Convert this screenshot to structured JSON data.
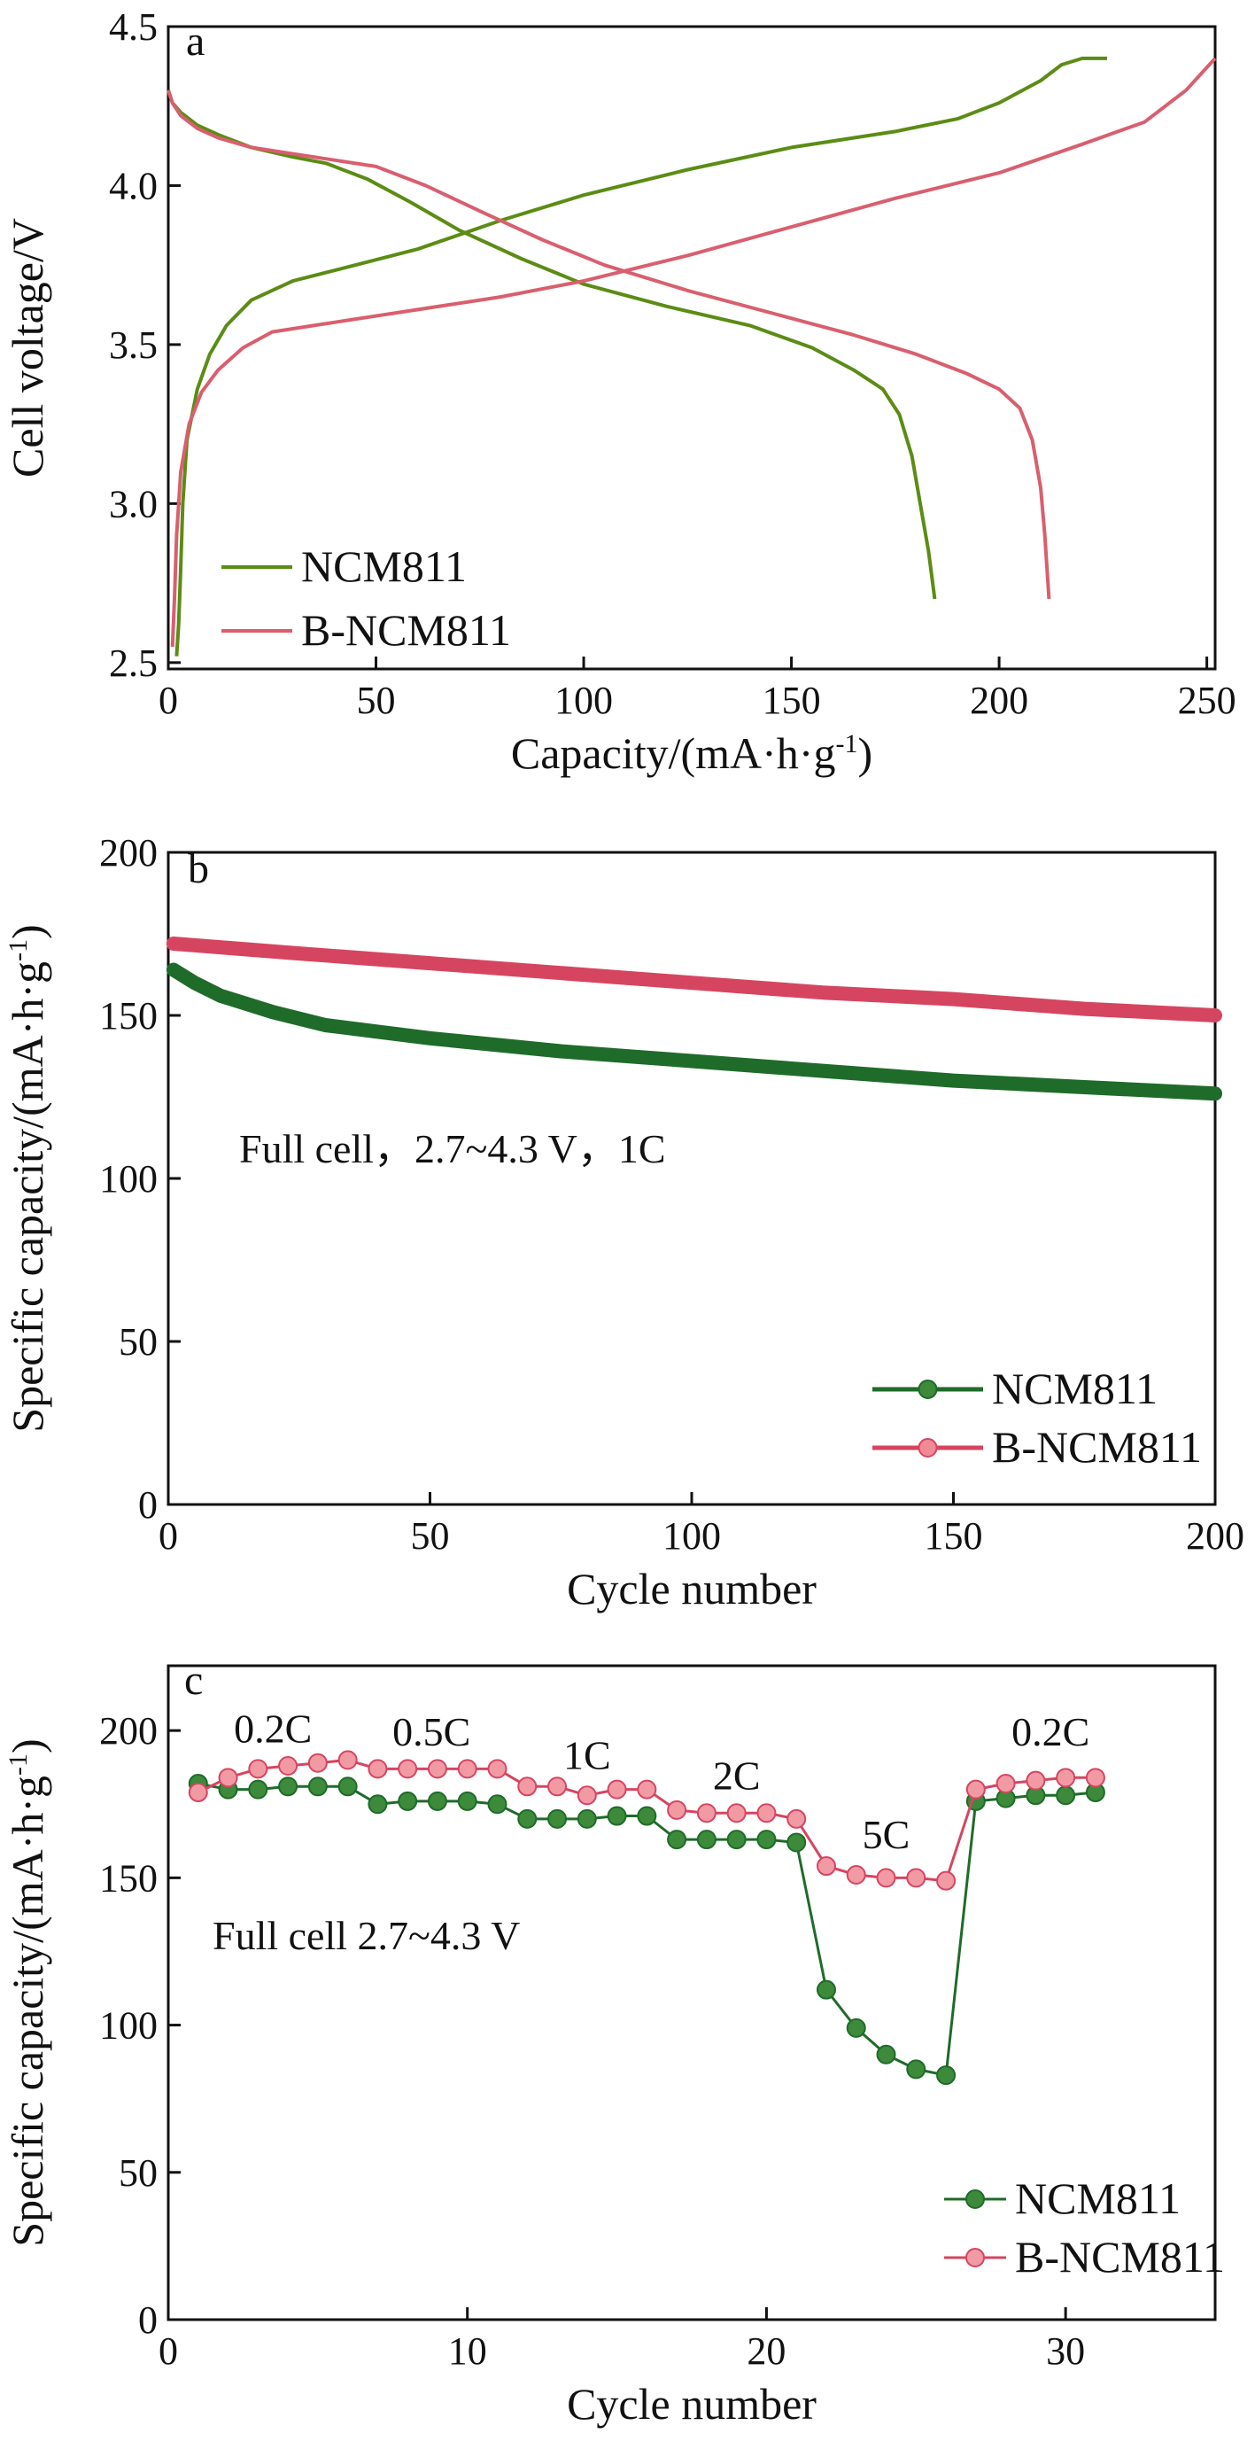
{
  "chart_data": [
    {
      "panel": "a",
      "type": "line",
      "xlabel": "Capacity/(mA·h·g",
      "xlabel_sup": "-1",
      "xlabel_close": ")",
      "ylabel": "Cell voltage/V",
      "xlim": [
        0,
        252
      ],
      "ylim": [
        2.48,
        4.5
      ],
      "xticks": [
        "0",
        "50",
        "100",
        "150",
        "200",
        "250"
      ],
      "yticks": [
        "2.5",
        "3.0",
        "3.5",
        "4.0",
        "4.5"
      ],
      "legend_position": "bottom-left",
      "series": [
        {
          "name": "NCM811",
          "color": "#5b8c14",
          "segments": [
            [
              [
                0,
                4.3
              ],
              [
                1,
                4.26
              ],
              [
                3,
                4.23
              ],
              [
                7,
                4.19
              ],
              [
                12,
                4.16
              ],
              [
                20,
                4.12
              ],
              [
                30,
                4.09
              ],
              [
                38,
                4.07
              ],
              [
                48,
                4.02
              ],
              [
                58,
                3.95
              ],
              [
                70,
                3.86
              ],
              [
                85,
                3.77
              ],
              [
                100,
                3.69
              ],
              [
                120,
                3.62
              ],
              [
                140,
                3.56
              ],
              [
                155,
                3.49
              ],
              [
                165,
                3.42
              ],
              [
                172,
                3.36
              ],
              [
                176,
                3.28
              ],
              [
                179,
                3.15
              ],
              [
                181,
                3.0
              ],
              [
                183,
                2.85
              ],
              [
                184.5,
                2.7
              ]
            ],
            [
              [
                2,
                2.52
              ],
              [
                2.5,
                2.62
              ],
              [
                3,
                2.8
              ],
              [
                3.5,
                3.0
              ],
              [
                4.5,
                3.2
              ],
              [
                7,
                3.36
              ],
              [
                10,
                3.47
              ],
              [
                14,
                3.56
              ],
              [
                20,
                3.64
              ],
              [
                30,
                3.7
              ],
              [
                45,
                3.75
              ],
              [
                60,
                3.8
              ],
              [
                80,
                3.89
              ],
              [
                100,
                3.97
              ],
              [
                125,
                4.05
              ],
              [
                150,
                4.12
              ],
              [
                175,
                4.17
              ],
              [
                190,
                4.21
              ],
              [
                200,
                4.26
              ],
              [
                210,
                4.33
              ],
              [
                215,
                4.38
              ],
              [
                220,
                4.4
              ],
              [
                226,
                4.4
              ]
            ]
          ]
        },
        {
          "name": "B-NCM811",
          "color": "#d95f6e",
          "segments": [
            [
              [
                0,
                4.3
              ],
              [
                1,
                4.26
              ],
              [
                3,
                4.22
              ],
              [
                7,
                4.18
              ],
              [
                12,
                4.15
              ],
              [
                20,
                4.12
              ],
              [
                30,
                4.1
              ],
              [
                40,
                4.08
              ],
              [
                50,
                4.06
              ],
              [
                62,
                4.0
              ],
              [
                75,
                3.92
              ],
              [
                90,
                3.83
              ],
              [
                105,
                3.75
              ],
              [
                125,
                3.67
              ],
              [
                145,
                3.6
              ],
              [
                165,
                3.53
              ],
              [
                180,
                3.47
              ],
              [
                192,
                3.41
              ],
              [
                200,
                3.36
              ],
              [
                205,
                3.3
              ],
              [
                208,
                3.2
              ],
              [
                210,
                3.05
              ],
              [
                211,
                2.9
              ],
              [
                212,
                2.7
              ]
            ],
            [
              [
                1,
                2.55
              ],
              [
                1.5,
                2.7
              ],
              [
                2,
                2.9
              ],
              [
                3,
                3.1
              ],
              [
                5,
                3.25
              ],
              [
                8,
                3.35
              ],
              [
                12,
                3.42
              ],
              [
                18,
                3.49
              ],
              [
                25,
                3.54
              ],
              [
                35,
                3.56
              ],
              [
                55,
                3.6
              ],
              [
                80,
                3.65
              ],
              [
                100,
                3.7
              ],
              [
                125,
                3.78
              ],
              [
                150,
                3.87
              ],
              [
                175,
                3.96
              ],
              [
                200,
                4.04
              ],
              [
                220,
                4.13
              ],
              [
                235,
                4.2
              ],
              [
                245,
                4.3
              ],
              [
                252,
                4.4
              ]
            ]
          ]
        }
      ]
    },
    {
      "panel": "b",
      "type": "line",
      "xlabel": "Cycle number",
      "ylabel": "Specific capacity/(mA·h·g",
      "ylabel_sup": "-1",
      "ylabel_close": ")",
      "xlim": [
        0,
        200
      ],
      "ylim": [
        0,
        200
      ],
      "xticks": [
        "0",
        "50",
        "100",
        "150",
        "200"
      ],
      "yticks": [
        "0",
        "50",
        "100",
        "150",
        "200"
      ],
      "annotation": "Full cell，2.7~4.3 V，1C",
      "legend_position": "bottom-right",
      "series": [
        {
          "name": "NCM811",
          "color": "#1f6b2a",
          "marker_color": "#3c8a3a",
          "points": [
            [
              1,
              164
            ],
            [
              5,
              160
            ],
            [
              10,
              156
            ],
            [
              20,
              151
            ],
            [
              30,
              147
            ],
            [
              40,
              145
            ],
            [
              50,
              143
            ],
            [
              75,
              139
            ],
            [
              100,
              136
            ],
            [
              125,
              133
            ],
            [
              150,
              130
            ],
            [
              175,
              128
            ],
            [
              200,
              126
            ]
          ]
        },
        {
          "name": "B-NCM811",
          "color": "#d64560",
          "marker_color": "#f08a96",
          "points": [
            [
              1,
              172
            ],
            [
              25,
              169
            ],
            [
              50,
              166
            ],
            [
              75,
              163
            ],
            [
              100,
              160
            ],
            [
              125,
              157
            ],
            [
              150,
              155
            ],
            [
              175,
              152
            ],
            [
              200,
              150
            ]
          ]
        }
      ]
    },
    {
      "panel": "c",
      "type": "line",
      "xlabel": "Cycle number",
      "ylabel": "Specific capacity/(mA·h·g",
      "ylabel_sup": "-1",
      "ylabel_close": ")",
      "xlim": [
        0,
        35
      ],
      "ylim": [
        0,
        222
      ],
      "xticks": [
        "0",
        "10",
        "20",
        "30"
      ],
      "yticks": [
        "0",
        "50",
        "100",
        "150",
        "200"
      ],
      "annotation": "Full cell 2.7~4.3 V",
      "legend_position": "bottom-right",
      "rate_labels": [
        {
          "text": "0.2C",
          "x": 3.5,
          "y": 196
        },
        {
          "text": "0.5C",
          "x": 8.8,
          "y": 195
        },
        {
          "text": "1C",
          "x": 14,
          "y": 187
        },
        {
          "text": "2C",
          "x": 19,
          "y": 180
        },
        {
          "text": "5C",
          "x": 24,
          "y": 160
        },
        {
          "text": "0.2C",
          "x": 29.5,
          "y": 195
        }
      ],
      "series": [
        {
          "name": "NCM811",
          "color": "#1f6b2a",
          "marker_color": "#3c8a3a",
          "points": [
            [
              1,
              182
            ],
            [
              2,
              180
            ],
            [
              3,
              180
            ],
            [
              4,
              181
            ],
            [
              5,
              181
            ],
            [
              6,
              181
            ],
            [
              7,
              175
            ],
            [
              8,
              176
            ],
            [
              9,
              176
            ],
            [
              10,
              176
            ],
            [
              11,
              175
            ],
            [
              12,
              170
            ],
            [
              13,
              170
            ],
            [
              14,
              170
            ],
            [
              15,
              171
            ],
            [
              16,
              171
            ],
            [
              17,
              163
            ],
            [
              18,
              163
            ],
            [
              19,
              163
            ],
            [
              20,
              163
            ],
            [
              21,
              162
            ],
            [
              22,
              112
            ],
            [
              23,
              99
            ],
            [
              24,
              90
            ],
            [
              25,
              85
            ],
            [
              26,
              83
            ],
            [
              27,
              176
            ],
            [
              28,
              177
            ],
            [
              29,
              178
            ],
            [
              30,
              178
            ],
            [
              31,
              179
            ]
          ]
        },
        {
          "name": "B-NCM811",
          "color": "#d64560",
          "marker_color": "#f29aa4",
          "points": [
            [
              1,
              179
            ],
            [
              2,
              184
            ],
            [
              3,
              187
            ],
            [
              4,
              188
            ],
            [
              5,
              189
            ],
            [
              6,
              190
            ],
            [
              7,
              187
            ],
            [
              8,
              187
            ],
            [
              9,
              187
            ],
            [
              10,
              187
            ],
            [
              11,
              187
            ],
            [
              12,
              181
            ],
            [
              13,
              181
            ],
            [
              14,
              178
            ],
            [
              15,
              180
            ],
            [
              16,
              180
            ],
            [
              17,
              173
            ],
            [
              18,
              172
            ],
            [
              19,
              172
            ],
            [
              20,
              172
            ],
            [
              21,
              170
            ],
            [
              22,
              154
            ],
            [
              23,
              151
            ],
            [
              24,
              150
            ],
            [
              25,
              150
            ],
            [
              26,
              149
            ],
            [
              27,
              180
            ],
            [
              28,
              182
            ],
            [
              29,
              183
            ],
            [
              30,
              184
            ],
            [
              31,
              184
            ]
          ]
        }
      ]
    }
  ]
}
